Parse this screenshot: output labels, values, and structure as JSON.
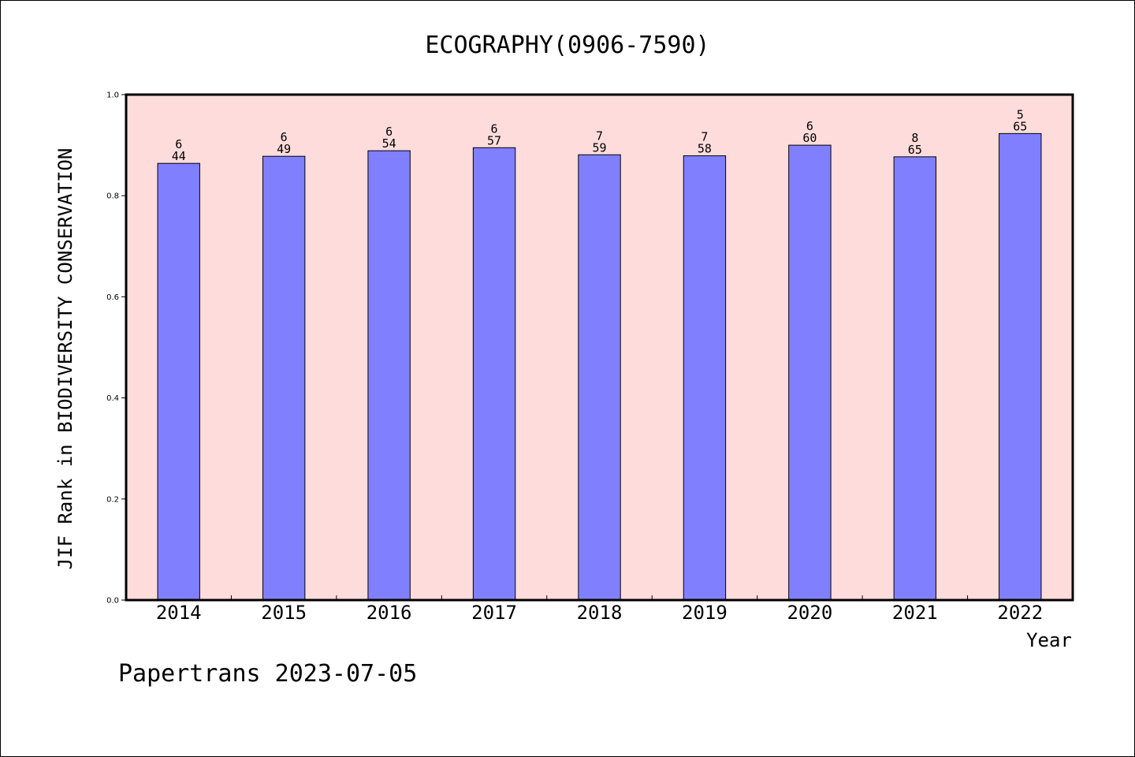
{
  "chart_data": {
    "type": "bar",
    "title": "ECOGRAPHY(0906-7590)",
    "xlabel": "Year",
    "ylabel": "JIF Rank in BIODIVERSITY CONSERVATION",
    "categories": [
      "2014",
      "2015",
      "2016",
      "2017",
      "2018",
      "2019",
      "2020",
      "2021",
      "2022"
    ],
    "values": [
      0.864,
      0.878,
      0.889,
      0.895,
      0.881,
      0.879,
      0.9,
      0.877,
      0.923
    ],
    "rank": [
      "6",
      "6",
      "6",
      "6",
      "7",
      "7",
      "6",
      "8",
      "5"
    ],
    "total": [
      "44",
      "49",
      "54",
      "57",
      "59",
      "58",
      "60",
      "65",
      "65"
    ],
    "ylim": [
      0,
      1.0
    ],
    "yticks": [
      "0.0",
      "0.2",
      "0.4",
      "0.6",
      "0.8",
      "1.0"
    ],
    "grid": false,
    "colors": {
      "bar": "#8080ff",
      "plot_background": "#ffdcdc"
    }
  },
  "footer": {
    "credit": "Papertrans 2023-07-05"
  }
}
